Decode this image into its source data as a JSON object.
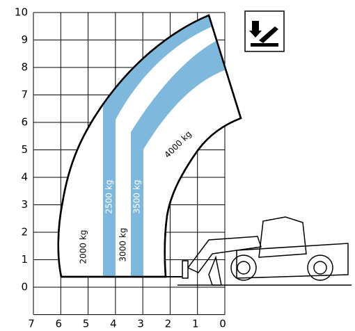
{
  "axes": {
    "x_ticks": [
      7,
      6,
      5,
      4,
      3,
      2,
      1,
      0
    ],
    "y_ticks": [
      0,
      1,
      2,
      3,
      4,
      5,
      6,
      7,
      8,
      9,
      10
    ]
  },
  "zones": [
    {
      "label": "2000 kg"
    },
    {
      "label": "2500 kg"
    },
    {
      "label": "3000 kg"
    },
    {
      "label": "3500 kg"
    },
    {
      "label": "4000 kg"
    }
  ]
}
